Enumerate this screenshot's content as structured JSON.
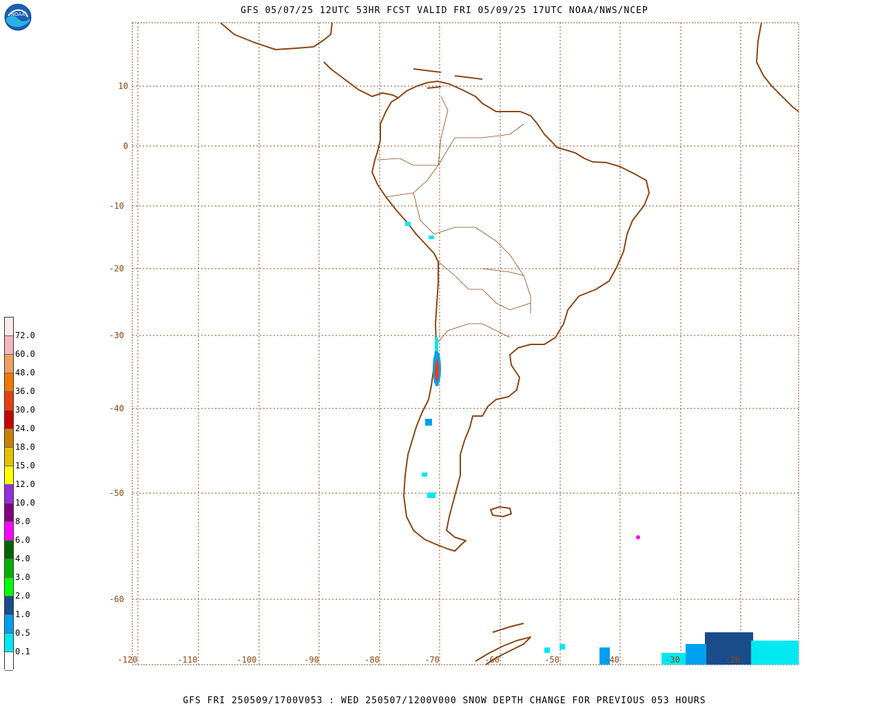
{
  "title": "GFS 05/07/25 12UTC 53HR FCST VALID FRI 05/09/25 17UTC NOAA/NWS/NCEP",
  "footer": "GFS FRI 250509/1700V053 : WED 250507/1200V000 SNOW DEPTH CHANGE FOR PREVIOUS 053 HOURS",
  "logo_text": "NOAA",
  "lat_labels": [
    "10",
    "0",
    "-10",
    "-20",
    "-30",
    "-40",
    "-50",
    "-60"
  ],
  "lon_labels": [
    "-120",
    "-110",
    "-100",
    "-90",
    "-80",
    "-70",
    "-60",
    "-50",
    "-40",
    "-30",
    "-20"
  ],
  "colors": {
    "coastline": "#8b4513",
    "grid": "#8b4513"
  },
  "legend": {
    "labels": [
      "72.0",
      "60.0",
      "48.0",
      "36.0",
      "30.0",
      "24.0",
      "18.0",
      "15.0",
      "12.0",
      "10.0",
      "8.0",
      "6.0",
      "4.0",
      "3.0",
      "2.0",
      "1.0",
      "0.5",
      "0.1"
    ],
    "colors": [
      "#fde8e8",
      "#f4b8c0",
      "#f0a060",
      "#f07800",
      "#e84010",
      "#c80000",
      "#c88000",
      "#e8c000",
      "#ffff00",
      "#9030e0",
      "#800080",
      "#ff00ff",
      "#006400",
      "#00b000",
      "#00ff00",
      "#1a4c8c",
      "#00a0f0",
      "#00e8f0",
      "#ffffff"
    ]
  }
}
